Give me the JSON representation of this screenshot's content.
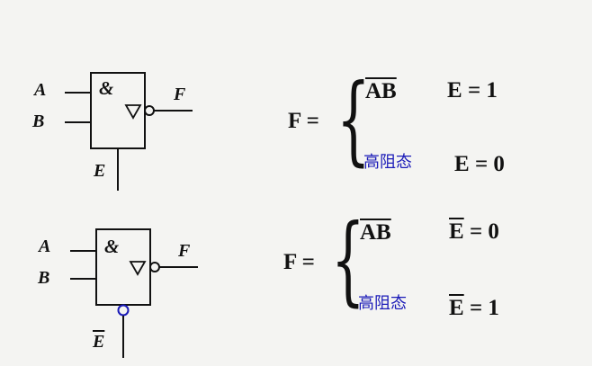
{
  "gate1": {
    "input_a": "A",
    "input_b": "B",
    "output": "F",
    "enable": "E",
    "symbol": "&",
    "enable_active_low": false
  },
  "gate2": {
    "input_a": "A",
    "input_b": "B",
    "output": "F",
    "enable": "E",
    "symbol": "&",
    "enable_active_low": true
  },
  "formula1": {
    "lhs": "F =",
    "case1_expr": "AB",
    "case1_cond_var": "E",
    "case1_cond_val": " = 1",
    "case2_expr": "高阻态",
    "case2_cond_var": "E",
    "case2_cond_val": " = 0"
  },
  "formula2": {
    "lhs": "F =",
    "case1_expr": "AB",
    "case1_cond_var": "E",
    "case1_cond_val": " = 0",
    "case2_expr": "高阻态",
    "case2_cond_var": "E",
    "case2_cond_val": " = 1"
  },
  "colors": {
    "line": "#111111",
    "chinese_text": "#1a1ab8",
    "enable_bubble": "#1a1ab8",
    "background": "#f4f4f2"
  }
}
